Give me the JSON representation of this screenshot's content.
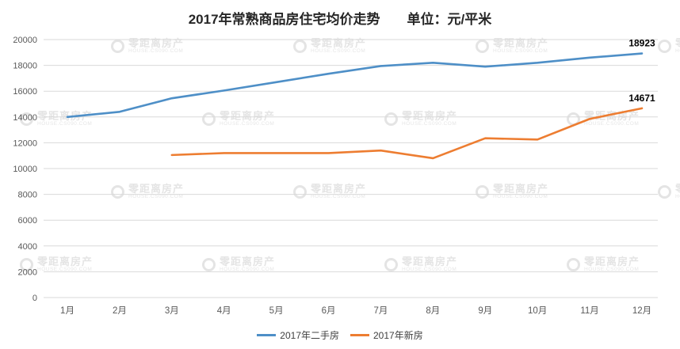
{
  "chart_data": {
    "type": "line",
    "title": "2017年常熟商品房住宅均价走势",
    "unit_label": "单位：元/平米",
    "categories": [
      "1月",
      "2月",
      "3月",
      "4月",
      "5月",
      "6月",
      "7月",
      "8月",
      "9月",
      "10月",
      "11月",
      "12月"
    ],
    "series": [
      {
        "name": "2017年二手房",
        "color": "#4e8fc7",
        "values": [
          14000,
          14400,
          15450,
          16050,
          16700,
          17350,
          17950,
          18200,
          17900,
          18200,
          18600,
          18923
        ]
      },
      {
        "name": "2017年新房",
        "color": "#ed7d31",
        "values": [
          null,
          null,
          11050,
          11200,
          11200,
          11200,
          11400,
          10800,
          12350,
          12250,
          13850,
          14671
        ]
      }
    ],
    "annotations": [
      {
        "text": "18923",
        "series": 0,
        "category_index": 11
      },
      {
        "text": "14671",
        "series": 1,
        "category_index": 11
      }
    ],
    "ylim": [
      0,
      20000
    ],
    "ytick_step": 2000,
    "grid": true,
    "legend_position": "bottom"
  },
  "watermark": {
    "name": "零距离房产",
    "site": "HOUSE.CS090.COM"
  },
  "colors": {
    "grid": "#d9d9d9",
    "axis_text": "#595959",
    "annotation": "#000000",
    "background": "#ffffff"
  }
}
